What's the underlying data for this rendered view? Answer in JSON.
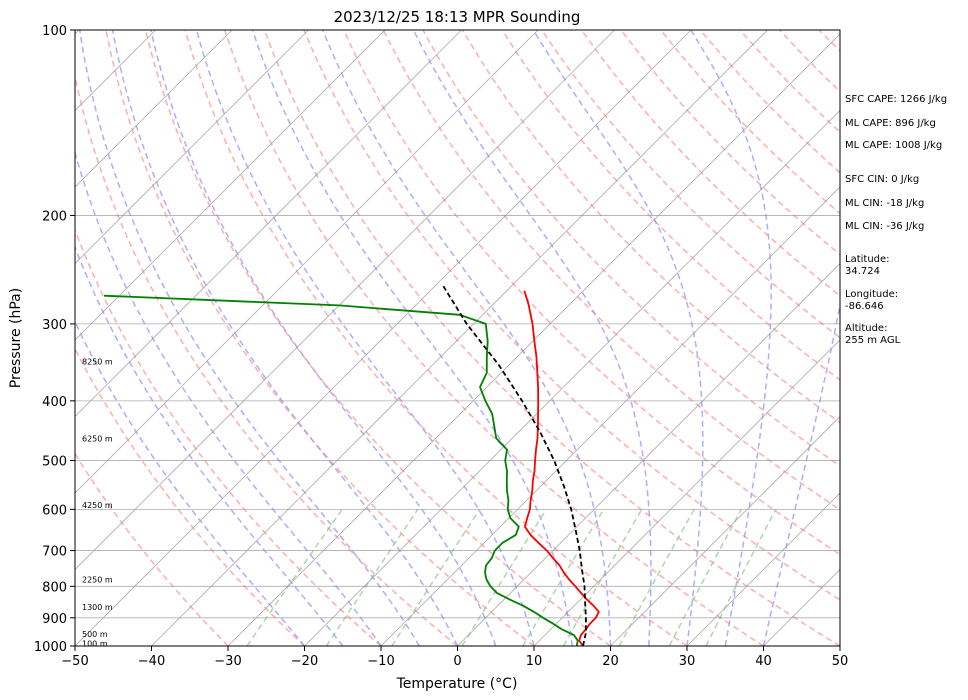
{
  "chart_data": {
    "type": "line",
    "title": "2023/12/25 18:13 MPR Sounding",
    "xlabel": "Temperature (°C)",
    "ylabel": "Pressure (hPa)",
    "xlim": [
      -50,
      50
    ],
    "ylim": [
      1000,
      100
    ],
    "yscale": "log",
    "skew": true,
    "grid": true,
    "x_ticks": [
      -50,
      -40,
      -30,
      -20,
      -10,
      0,
      10,
      20,
      30,
      40,
      50
    ],
    "x_tick_labels": [
      "−50",
      "−40",
      "−30",
      "−20",
      "−10",
      "0",
      "10",
      "20",
      "30",
      "40",
      "50"
    ],
    "y_ticks": [
      1000,
      900,
      800,
      700,
      600,
      500,
      400,
      300,
      200,
      100
    ],
    "y_tick_labels": [
      "1000",
      "900",
      "800",
      "700",
      "600",
      "500",
      "400",
      "300",
      "200",
      "100"
    ],
    "series": [
      {
        "color": "#ff0000",
        "style": "solid",
        "p": [
          1000,
          980,
          960,
          940,
          920,
          900,
          880,
          860,
          840,
          820,
          800,
          780,
          760,
          740,
          720,
          700,
          680,
          660,
          640,
          620,
          600,
          580,
          560,
          540,
          520,
          500,
          480,
          460,
          440,
          420,
          400,
          380,
          360,
          340,
          320,
          300,
          280,
          265
        ],
        "t": [
          16.4,
          15.2,
          14.7,
          14.6,
          14.4,
          14.4,
          14.0,
          12.5,
          10.8,
          9.2,
          7.6,
          5.9,
          4.3,
          2.8,
          1.0,
          -0.8,
          -2.9,
          -5.0,
          -6.8,
          -7.6,
          -8.4,
          -9.5,
          -10.5,
          -11.7,
          -12.8,
          -14.1,
          -15.4,
          -16.7,
          -18.2,
          -19.8,
          -21.5,
          -23.3,
          -25.3,
          -27.4,
          -29.8,
          -32.3,
          -35.2,
          -37.7
        ]
      },
      {
        "color": "#008000",
        "style": "solid",
        "p": [
          1000,
          980,
          960,
          940,
          920,
          900,
          880,
          860,
          840,
          820,
          800,
          780,
          760,
          740,
          720,
          700,
          680,
          660,
          640,
          620,
          600,
          580,
          560,
          540,
          520,
          500,
          480,
          460,
          440,
          420,
          400,
          380,
          360,
          340,
          320,
          300,
          290,
          280,
          270
        ],
        "t": [
          15.6,
          15.0,
          13.8,
          11.5,
          9.6,
          7.5,
          5.5,
          3.3,
          0.7,
          -1.8,
          -3.5,
          -4.9,
          -6.0,
          -6.8,
          -7.0,
          -7.6,
          -7.6,
          -6.9,
          -7.6,
          -9.8,
          -11.3,
          -12.4,
          -13.8,
          -15.1,
          -16.4,
          -18.0,
          -19.2,
          -22.1,
          -23.9,
          -25.8,
          -28.4,
          -30.9,
          -31.9,
          -33.9,
          -35.9,
          -38.4,
          -43.0,
          -60.0,
          -92.0
        ]
      },
      {
        "color": "#000000",
        "style": "dashed",
        "p": [
          1000,
          950,
          900,
          850,
          800,
          750,
          700,
          650,
          600,
          550,
          500,
          450,
          400,
          350,
          300,
          260
        ],
        "t": [
          16.4,
          15.0,
          13.1,
          11.0,
          8.8,
          6.2,
          3.5,
          0.4,
          -3.0,
          -7.0,
          -11.6,
          -17.1,
          -23.6,
          -31.3,
          -40.9,
          -49.0
        ]
      }
    ],
    "altitude_labels": [
      {
        "p": 990,
        "text": "100 m"
      },
      {
        "p": 957,
        "text": "500 m"
      },
      {
        "p": 865,
        "text": "1300 m"
      },
      {
        "p": 780,
        "text": "2250 m"
      },
      {
        "p": 590,
        "text": "4250 m"
      },
      {
        "p": 460,
        "text": "6250 m"
      },
      {
        "p": 345,
        "text": "8250 m"
      }
    ]
  },
  "sidebar": {
    "items": [
      "SFC CAPE: 1266 J/kg",
      "ML CAPE: 896 J/kg",
      "ML CAPE: 1008 J/kg",
      "SFC CIN: 0 J/kg",
      "ML CIN: -18 J/kg",
      "ML CIN: -36 J/kg",
      "Latitude:",
      "34.724",
      "Longitude:",
      "-86.646",
      "Altitude:",
      "255 m AGL"
    ]
  },
  "colors": {
    "temperature": "#ff0000",
    "dewpoint": "#008000",
    "parcel": "#000000",
    "dry_adiabats": "#ff9999",
    "moist_adiabats": "#9999ff",
    "mixing_ratio": "#99cc99",
    "isotherms": "#999999"
  }
}
